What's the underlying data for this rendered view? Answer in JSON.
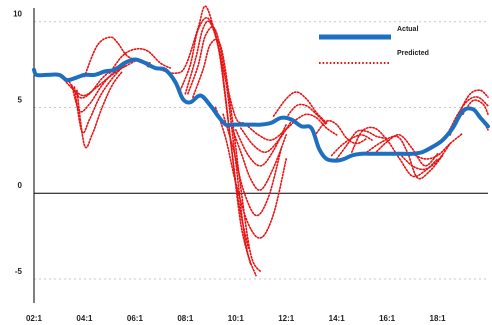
{
  "chart_data": {
    "type": "line",
    "x_tick_labels": [
      "02:1",
      "04:1",
      "06:1",
      "08:1",
      "10:1",
      "12:1",
      "14:1",
      "16:1",
      "18:1"
    ],
    "x_tick_positions": [
      2,
      4,
      6,
      8,
      10,
      12,
      14,
      16,
      18
    ],
    "xlim": [
      2,
      20
    ],
    "y_tick_labels": [
      "10",
      "5",
      "0",
      "-5"
    ],
    "y_tick_values": [
      10,
      5,
      0,
      -5
    ],
    "ylim": [
      -6.4,
      10.8
    ],
    "zero_line": 0,
    "grid": "dashed horizontal",
    "legend_position": "top-right",
    "actual": {
      "name": "Actual",
      "color": "#1f6fc0",
      "x": [
        2.0,
        2.1,
        2.5,
        3.0,
        3.3,
        3.6,
        4.0,
        4.4,
        4.8,
        5.2,
        5.6,
        6.0,
        6.4,
        6.8,
        7.2,
        7.6,
        7.9,
        8.2,
        8.6,
        9.0,
        9.3,
        9.6,
        9.9,
        10.2,
        10.6,
        11.0,
        11.4,
        11.8,
        12.2,
        12.6,
        13.0,
        13.3,
        13.6,
        14.0,
        14.3,
        14.6,
        15.0,
        15.4,
        15.8,
        16.2,
        16.6,
        17.0,
        17.4,
        17.8,
        18.2,
        18.6,
        19.0,
        19.4,
        19.7,
        20.0
      ],
      "y": [
        7.2,
        6.9,
        6.9,
        6.9,
        6.6,
        6.7,
        6.9,
        6.9,
        7.1,
        7.2,
        7.6,
        7.8,
        7.6,
        7.3,
        7.2,
        6.5,
        5.5,
        5.3,
        5.7,
        5.1,
        4.5,
        4.0,
        4.0,
        4.0,
        4.0,
        4.0,
        4.1,
        4.4,
        4.3,
        3.9,
        3.8,
        2.6,
        2.0,
        1.9,
        2.0,
        2.2,
        2.3,
        2.3,
        2.3,
        2.3,
        2.3,
        2.3,
        2.4,
        2.7,
        3.1,
        3.8,
        4.8,
        4.9,
        4.4,
        3.9
      ]
    },
    "predicted": {
      "name": "Predicted",
      "color": "#e81414",
      "series": [
        {
          "x": [
            2.0,
            2.1,
            2.5,
            3.0,
            3.3,
            3.6,
            4.0,
            4.4,
            4.8,
            5.2,
            5.6,
            6.0,
            6.4,
            6.8,
            7.2,
            7.6,
            7.9,
            8.2,
            8.6,
            9.0,
            9.3,
            9.6,
            9.9,
            10.2,
            10.6,
            11.0,
            11.4,
            11.8,
            12.2,
            12.6,
            13.0,
            13.3,
            13.6,
            14.0,
            14.3,
            14.6,
            15.0,
            15.4,
            15.8,
            16.2,
            16.6,
            17.0,
            17.4,
            17.8,
            18.2,
            18.6,
            19.0,
            19.4,
            19.7,
            20.0
          ],
          "y": [
            7.2,
            6.9,
            6.9,
            6.9,
            6.6,
            6.7,
            6.9,
            6.9,
            7.1,
            7.2,
            7.6,
            7.8,
            7.6,
            7.3,
            7.2,
            6.5,
            5.5,
            5.3,
            5.7,
            5.1,
            4.5,
            4.0,
            4.0,
            4.0,
            4.0,
            4.0,
            4.1,
            4.4,
            4.3,
            3.9,
            3.8,
            2.6,
            2.0,
            1.9,
            2.0,
            2.2,
            2.3,
            2.3,
            2.3,
            2.3,
            2.3,
            2.3,
            2.4,
            2.7,
            3.1,
            3.8,
            4.8,
            4.9,
            4.4,
            3.9
          ]
        },
        {
          "x": [
            3.2,
            3.6,
            4.0,
            4.5,
            5.0,
            5.5,
            6.0
          ],
          "y": [
            6.6,
            6.0,
            5.7,
            6.2,
            6.8,
            7.3,
            7.7
          ]
        },
        {
          "x": [
            3.4,
            3.8,
            4.2,
            4.7,
            5.2,
            5.6
          ],
          "y": [
            6.5,
            5.6,
            5.8,
            6.7,
            7.3,
            7.5
          ]
        },
        {
          "x": [
            3.5,
            3.8,
            4.2,
            4.7,
            5.2,
            5.6
          ],
          "y": [
            6.3,
            4.8,
            5.2,
            6.3,
            7.1,
            7.4
          ]
        },
        {
          "x": [
            3.6,
            3.9,
            4.2,
            4.6,
            5.0,
            5.4
          ],
          "y": [
            6.2,
            3.6,
            4.3,
            5.6,
            6.5,
            7.2
          ]
        },
        {
          "x": [
            3.7,
            4.0,
            4.3,
            4.7,
            5.1,
            5.5
          ],
          "y": [
            6.0,
            2.8,
            3.4,
            5.0,
            6.3,
            7.1
          ]
        },
        {
          "x": [
            4.0,
            4.5,
            5.0,
            5.3,
            5.7,
            6.2,
            6.6
          ],
          "y": [
            6.8,
            8.6,
            9.1,
            8.8,
            8.0,
            7.7,
            7.6
          ]
        },
        {
          "x": [
            5.0,
            5.5,
            6.0,
            6.5,
            7.0,
            7.4
          ],
          "y": [
            7.0,
            8.0,
            8.4,
            8.3,
            7.6,
            7.3
          ]
        },
        {
          "x": [
            6.5,
            7.0,
            7.6,
            8.0,
            8.5,
            8.8,
            9.2,
            9.6,
            10.0,
            10.3
          ],
          "y": [
            7.4,
            7.2,
            7.0,
            7.4,
            9.6,
            10.9,
            9.2,
            6.6,
            4.4,
            4.1
          ]
        },
        {
          "x": [
            7.8,
            8.2,
            8.5,
            8.9,
            9.3,
            9.7,
            10.1,
            10.5
          ],
          "y": [
            6.0,
            7.5,
            9.5,
            10.2,
            8.6,
            4.2,
            -0.4,
            -3.2
          ]
        },
        {
          "x": [
            8.0,
            8.4,
            8.7,
            9.0,
            9.4,
            9.8,
            10.2,
            10.6
          ],
          "y": [
            5.8,
            7.8,
            9.6,
            9.9,
            7.8,
            3.0,
            -1.8,
            -4.2
          ]
        },
        {
          "x": [
            8.1,
            8.5,
            8.8,
            9.2,
            9.6,
            10.0,
            10.4,
            10.8
          ],
          "y": [
            5.8,
            7.4,
            9.2,
            9.5,
            6.6,
            1.8,
            -3.0,
            -4.8
          ]
        },
        {
          "x": [
            8.3,
            8.7,
            9.0,
            9.4,
            9.8,
            10.2,
            10.6,
            11.0
          ],
          "y": [
            5.6,
            7.2,
            8.7,
            8.6,
            5.0,
            0.3,
            -3.6,
            -4.6
          ]
        },
        {
          "x": [
            9.2,
            9.6,
            10.0,
            10.5,
            11.0,
            11.5,
            12.0
          ],
          "y": [
            5.0,
            3.2,
            0.6,
            -1.8,
            -2.6,
            -1.2,
            2.0
          ]
        },
        {
          "x": [
            9.5,
            9.9,
            10.3,
            10.8,
            11.3,
            11.8
          ],
          "y": [
            4.6,
            2.6,
            0.2,
            -1.3,
            -0.2,
            2.6
          ]
        },
        {
          "x": [
            9.8,
            10.2,
            10.6,
            11.0,
            11.5,
            12.0
          ],
          "y": [
            4.0,
            2.4,
            0.8,
            0.2,
            1.5,
            3.4
          ]
        },
        {
          "x": [
            10.0,
            10.5,
            11.0,
            11.5,
            12.0
          ],
          "y": [
            3.7,
            2.2,
            1.6,
            2.5,
            4.0
          ]
        },
        {
          "x": [
            10.2,
            10.7,
            11.2,
            11.7,
            12.2
          ],
          "y": [
            3.8,
            2.8,
            2.4,
            3.1,
            4.2
          ]
        },
        {
          "x": [
            10.4,
            10.9,
            11.4,
            11.9,
            12.4
          ],
          "y": [
            4.0,
            3.4,
            3.1,
            3.6,
            4.3
          ]
        },
        {
          "x": [
            11.5,
            12.0,
            12.4,
            12.8,
            13.2,
            13.6
          ],
          "y": [
            4.5,
            5.5,
            5.9,
            5.5,
            4.7,
            4.1
          ]
        },
        {
          "x": [
            12.0,
            12.4,
            12.8,
            13.2,
            13.6
          ],
          "y": [
            4.4,
            5.1,
            5.1,
            4.6,
            4.0
          ]
        },
        {
          "x": [
            12.4,
            12.8,
            13.2,
            13.6,
            14.0
          ],
          "y": [
            4.3,
            4.6,
            4.4,
            3.8,
            3.4
          ]
        },
        {
          "x": [
            13.2,
            13.6,
            14.0,
            14.4,
            14.8,
            15.2
          ],
          "y": [
            3.5,
            4.2,
            4.0,
            3.2,
            2.9,
            3.2
          ]
        },
        {
          "x": [
            13.8,
            14.2,
            14.6,
            15.0,
            15.4
          ],
          "y": [
            2.2,
            2.8,
            3.2,
            3.4,
            3.1
          ]
        },
        {
          "x": [
            14.0,
            14.4,
            14.8,
            15.2,
            15.6,
            16.0
          ],
          "y": [
            2.0,
            2.8,
            3.6,
            3.6,
            3.3,
            3.2
          ]
        },
        {
          "x": [
            14.6,
            15.0,
            15.5,
            16.0,
            16.5,
            17.0,
            17.5,
            18.0
          ],
          "y": [
            2.4,
            3.6,
            3.8,
            3.1,
            2.0,
            1.0,
            1.3,
            2.0
          ]
        },
        {
          "x": [
            15.2,
            15.8,
            16.4,
            16.8,
            17.2,
            17.7,
            18.2
          ],
          "y": [
            2.4,
            3.0,
            3.3,
            2.4,
            0.9,
            1.3,
            2.2
          ]
        },
        {
          "x": [
            15.5,
            16.0,
            16.5,
            17.0,
            17.5,
            18.0
          ],
          "y": [
            2.3,
            3.0,
            3.4,
            2.6,
            1.6,
            2.3
          ]
        },
        {
          "x": [
            16.5,
            17.0,
            17.5,
            18.0,
            18.5
          ],
          "y": [
            2.3,
            1.6,
            1.4,
            1.9,
            2.9
          ]
        },
        {
          "x": [
            17.0,
            17.5,
            18.0,
            18.5,
            19.0
          ],
          "y": [
            2.3,
            2.0,
            2.2,
            2.9,
            3.5
          ]
        },
        {
          "x": [
            18.0,
            18.4,
            18.8,
            19.2,
            19.6,
            20.0
          ],
          "y": [
            2.8,
            3.5,
            4.6,
            5.4,
            5.6,
            5.1
          ]
        },
        {
          "x": [
            18.5,
            18.9,
            19.3,
            19.7,
            20.0
          ],
          "y": [
            3.4,
            4.8,
            5.8,
            6.0,
            5.6
          ]
        },
        {
          "x": [
            19.0,
            19.4,
            19.8,
            20.0
          ],
          "y": [
            4.6,
            5.4,
            5.2,
            4.6
          ]
        },
        {
          "x": [
            19.4,
            19.7,
            20.0
          ],
          "y": [
            4.9,
            4.5,
            3.7
          ]
        }
      ]
    }
  }
}
